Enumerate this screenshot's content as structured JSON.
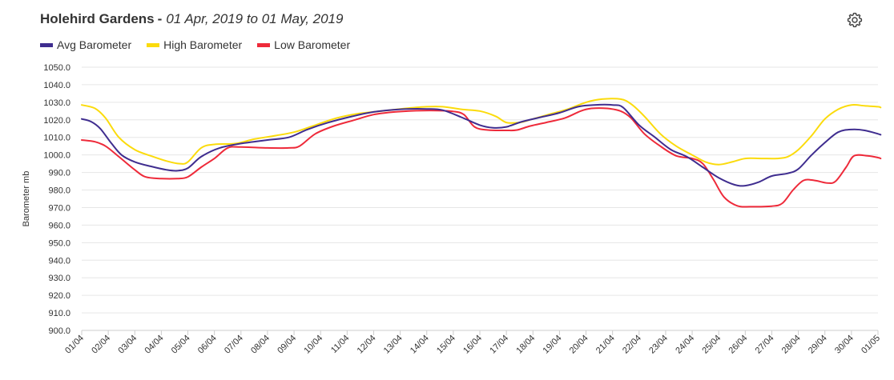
{
  "header": {
    "title": "Holehird Gardens",
    "separator": "-",
    "date_range": "01 Apr, 2019 to 01 May, 2019"
  },
  "icons": {
    "settings": "gear-icon"
  },
  "chart_data": {
    "type": "line",
    "ylabel": "Barometer mb",
    "ylim": [
      900,
      1050
    ],
    "y_ticks": [
      "900.0",
      "910.0",
      "920.0",
      "930.0",
      "940.0",
      "950.0",
      "960.0",
      "970.0",
      "980.0",
      "990.0",
      "1000.0",
      "1010.0",
      "1020.0",
      "1030.0",
      "1040.0",
      "1050.0"
    ],
    "x_ticks": [
      "01/04",
      "02/04",
      "03/04",
      "04/04",
      "05/04",
      "06/04",
      "07/04",
      "08/04",
      "09/04",
      "10/04",
      "11/04",
      "12/04",
      "13/04",
      "14/04",
      "15/04",
      "16/04",
      "17/04",
      "18/04",
      "19/04",
      "20/04",
      "21/04",
      "22/04",
      "23/04",
      "24/04",
      "25/04",
      "26/04",
      "27/04",
      "28/04",
      "29/04",
      "30/04",
      "01/05"
    ],
    "grid": true,
    "legend_position": "top-left",
    "series": [
      {
        "name": "Avg Barometer",
        "color": "#3f2d8f",
        "points": [
          [
            0,
            1020.5
          ],
          [
            0.35,
            1019
          ],
          [
            0.7,
            1015
          ],
          [
            1.1,
            1007
          ],
          [
            1.5,
            1000
          ],
          [
            2.0,
            996
          ],
          [
            2.6,
            993.5
          ],
          [
            3.2,
            991.5
          ],
          [
            3.6,
            991
          ],
          [
            4.0,
            992.5
          ],
          [
            4.5,
            999
          ],
          [
            5.2,
            1004
          ],
          [
            6.0,
            1006.5
          ],
          [
            7.0,
            1008.5
          ],
          [
            7.8,
            1010
          ],
          [
            8.5,
            1014.5
          ],
          [
            9.3,
            1018.5
          ],
          [
            10.2,
            1022
          ],
          [
            11.0,
            1024.5
          ],
          [
            12.0,
            1026
          ],
          [
            13.0,
            1026.2
          ],
          [
            13.6,
            1025.5
          ],
          [
            14.3,
            1021.5
          ],
          [
            15.0,
            1017
          ],
          [
            15.5,
            1015.5
          ],
          [
            16.0,
            1016
          ],
          [
            16.6,
            1019
          ],
          [
            17.3,
            1021.5
          ],
          [
            18.0,
            1024
          ],
          [
            18.7,
            1027.5
          ],
          [
            19.3,
            1028.5
          ],
          [
            20.0,
            1028.5
          ],
          [
            20.4,
            1027
          ],
          [
            21.0,
            1017
          ],
          [
            21.6,
            1010
          ],
          [
            22.2,
            1003
          ],
          [
            22.8,
            999
          ],
          [
            23.4,
            993
          ],
          [
            24.0,
            987
          ],
          [
            24.6,
            983
          ],
          [
            25.0,
            982.5
          ],
          [
            25.5,
            984.5
          ],
          [
            26.0,
            988
          ],
          [
            26.6,
            989.5
          ],
          [
            27.0,
            992
          ],
          [
            27.5,
            1000
          ],
          [
            28.0,
            1007
          ],
          [
            28.5,
            1013
          ],
          [
            29.0,
            1014.5
          ],
          [
            29.5,
            1014
          ],
          [
            30.0,
            1012
          ],
          [
            30.1,
            1011.5
          ]
        ]
      },
      {
        "name": "High Barometer",
        "color": "#fbdb0c",
        "points": [
          [
            0,
            1028.5
          ],
          [
            0.5,
            1026.5
          ],
          [
            0.9,
            1021
          ],
          [
            1.4,
            1010
          ],
          [
            2.0,
            1003
          ],
          [
            2.6,
            999.5
          ],
          [
            3.2,
            996.5
          ],
          [
            3.7,
            995
          ],
          [
            4.0,
            996
          ],
          [
            4.5,
            1004
          ],
          [
            5.0,
            1006
          ],
          [
            5.8,
            1006.5
          ],
          [
            6.5,
            1009
          ],
          [
            7.3,
            1011
          ],
          [
            8.0,
            1013
          ],
          [
            8.8,
            1017
          ],
          [
            9.6,
            1021
          ],
          [
            10.4,
            1023.5
          ],
          [
            11.3,
            1025
          ],
          [
            12.2,
            1026.5
          ],
          [
            13.0,
            1027.5
          ],
          [
            13.6,
            1027.5
          ],
          [
            14.3,
            1026
          ],
          [
            15.0,
            1025
          ],
          [
            15.6,
            1022
          ],
          [
            16.0,
            1018.5
          ],
          [
            16.5,
            1018.5
          ],
          [
            17.0,
            1020.5
          ],
          [
            17.7,
            1023.5
          ],
          [
            18.3,
            1026
          ],
          [
            19.0,
            1030
          ],
          [
            19.6,
            1031.8
          ],
          [
            20.3,
            1031.8
          ],
          [
            20.7,
            1029
          ],
          [
            21.2,
            1022
          ],
          [
            21.8,
            1012
          ],
          [
            22.4,
            1005
          ],
          [
            23.0,
            1000
          ],
          [
            23.5,
            996
          ],
          [
            24.0,
            994.5
          ],
          [
            24.5,
            996
          ],
          [
            25.0,
            998
          ],
          [
            25.6,
            998
          ],
          [
            26.2,
            998
          ],
          [
            26.6,
            999
          ],
          [
            27.0,
            1003
          ],
          [
            27.5,
            1011
          ],
          [
            28.0,
            1020.5
          ],
          [
            28.5,
            1026
          ],
          [
            29.0,
            1028.5
          ],
          [
            29.5,
            1028
          ],
          [
            30.0,
            1027.5
          ],
          [
            30.1,
            1027
          ]
        ]
      },
      {
        "name": "Low Barometer",
        "color": "#ee2a3a",
        "points": [
          [
            0,
            1008.5
          ],
          [
            0.5,
            1007.5
          ],
          [
            0.9,
            1005
          ],
          [
            1.4,
            999
          ],
          [
            2.0,
            991.5
          ],
          [
            2.4,
            987.5
          ],
          [
            3.0,
            986.5
          ],
          [
            3.6,
            986.5
          ],
          [
            4.0,
            987.5
          ],
          [
            4.5,
            993
          ],
          [
            5.0,
            998
          ],
          [
            5.5,
            1004
          ],
          [
            6.0,
            1004.5
          ],
          [
            7.0,
            1004
          ],
          [
            7.8,
            1004
          ],
          [
            8.2,
            1005
          ],
          [
            8.8,
            1012
          ],
          [
            9.5,
            1016.5
          ],
          [
            10.3,
            1020
          ],
          [
            11.0,
            1023
          ],
          [
            11.8,
            1024.5
          ],
          [
            12.6,
            1025.2
          ],
          [
            13.4,
            1025.3
          ],
          [
            14.0,
            1024.8
          ],
          [
            14.4,
            1023
          ],
          [
            14.8,
            1016
          ],
          [
            15.3,
            1014.2
          ],
          [
            16.0,
            1014
          ],
          [
            16.4,
            1014.2
          ],
          [
            16.9,
            1016.5
          ],
          [
            17.5,
            1018.5
          ],
          [
            18.2,
            1021
          ],
          [
            18.8,
            1025
          ],
          [
            19.2,
            1026.5
          ],
          [
            19.8,
            1026.5
          ],
          [
            20.3,
            1025
          ],
          [
            20.7,
            1021
          ],
          [
            21.2,
            1012
          ],
          [
            21.8,
            1005
          ],
          [
            22.4,
            999.5
          ],
          [
            23.0,
            998
          ],
          [
            23.4,
            995
          ],
          [
            23.8,
            986
          ],
          [
            24.2,
            976
          ],
          [
            24.7,
            971
          ],
          [
            25.2,
            970.5
          ],
          [
            26.0,
            970.8
          ],
          [
            26.4,
            972.5
          ],
          [
            26.8,
            980
          ],
          [
            27.2,
            985.5
          ],
          [
            27.6,
            985.5
          ],
          [
            28.1,
            984
          ],
          [
            28.4,
            985
          ],
          [
            28.8,
            993
          ],
          [
            29.1,
            999.5
          ],
          [
            29.6,
            999.5
          ],
          [
            30.0,
            998.5
          ],
          [
            30.1,
            998
          ]
        ]
      }
    ]
  }
}
